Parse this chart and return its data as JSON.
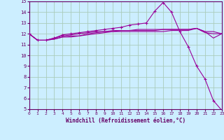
{
  "bg_color": "#cceeff",
  "grid_color": "#aaccbb",
  "line_color": "#990099",
  "marker_color": "#990099",
  "xlabel": "Windchill (Refroidissement éolien,°C)",
  "xlim": [
    0,
    23
  ],
  "ylim": [
    5,
    15
  ],
  "xticks": [
    0,
    1,
    2,
    3,
    4,
    5,
    6,
    7,
    8,
    9,
    10,
    11,
    12,
    13,
    14,
    15,
    16,
    17,
    18,
    19,
    20,
    21,
    22,
    23
  ],
  "yticks": [
    5,
    6,
    7,
    8,
    9,
    10,
    11,
    12,
    13,
    14,
    15
  ],
  "series1_x": [
    0,
    1,
    2,
    3,
    4,
    5,
    6,
    7,
    8,
    9,
    10,
    11,
    12,
    13,
    14,
    15,
    16,
    17,
    18,
    19,
    20,
    21,
    22,
    23
  ],
  "series1_y": [
    12.0,
    11.4,
    11.4,
    11.5,
    11.7,
    11.7,
    11.8,
    11.9,
    12.0,
    12.1,
    12.2,
    12.2,
    12.2,
    12.2,
    12.2,
    12.2,
    12.2,
    12.3,
    12.3,
    12.3,
    12.5,
    12.2,
    12.2,
    12.0
  ],
  "series2_x": [
    0,
    1,
    2,
    3,
    4,
    5,
    6,
    7,
    8,
    9,
    10,
    11,
    12,
    13,
    14,
    15,
    16,
    17,
    18,
    19,
    20,
    21,
    22,
    23
  ],
  "series2_y": [
    12.0,
    11.4,
    11.4,
    11.6,
    11.8,
    11.9,
    12.0,
    12.1,
    12.2,
    12.2,
    12.3,
    12.3,
    12.3,
    12.4,
    12.4,
    12.4,
    12.4,
    12.4,
    12.4,
    12.4,
    12.5,
    12.2,
    11.6,
    12.0
  ],
  "series3_x": [
    0,
    1,
    2,
    3,
    4,
    5,
    6,
    7,
    8,
    9,
    10,
    11,
    12,
    13,
    14,
    15,
    16,
    17,
    18,
    19,
    20,
    21,
    22,
    23
  ],
  "series3_y": [
    12.0,
    11.4,
    11.4,
    11.6,
    11.9,
    12.0,
    12.1,
    12.2,
    12.3,
    12.4,
    12.5,
    12.6,
    12.8,
    12.9,
    13.0,
    14.1,
    14.9,
    14.0,
    12.2,
    10.8,
    9.0,
    7.8,
    5.8,
    4.9
  ],
  "series4_x": [
    0,
    1,
    2,
    3,
    4,
    5,
    6,
    7,
    8,
    9,
    10,
    11,
    12,
    13,
    14,
    15,
    16,
    17,
    18,
    19,
    20,
    21,
    22,
    23
  ],
  "series4_y": [
    12.0,
    11.4,
    11.4,
    11.5,
    11.7,
    11.8,
    11.8,
    12.0,
    12.1,
    12.2,
    12.2,
    12.3,
    12.3,
    12.3,
    12.3,
    12.3,
    12.4,
    12.4,
    12.4,
    12.4,
    12.5,
    12.1,
    12.0,
    12.0
  ]
}
